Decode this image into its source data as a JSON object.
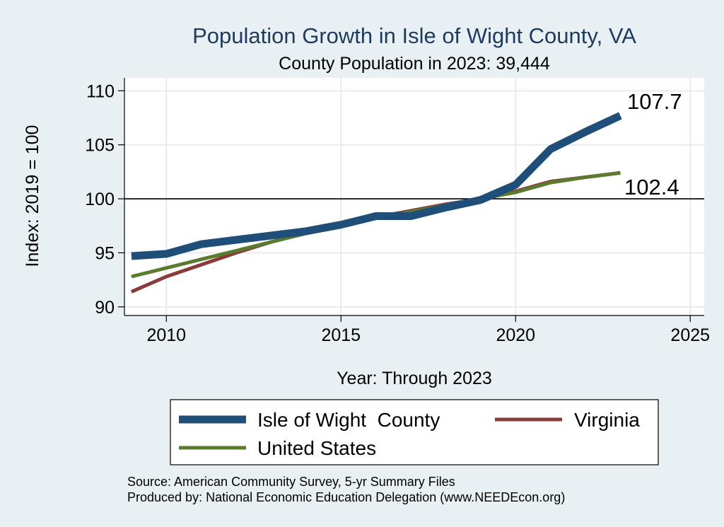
{
  "chart_data": {
    "type": "line",
    "title": "Population Growth in Isle of Wight County, VA",
    "subtitle": "County Population in 2023: 39,444",
    "xlabel": "Year: Through 2023",
    "ylabel": "Index: 2019 = 100",
    "xlim": [
      2008.8,
      2025.4
    ],
    "ylim": [
      89.2,
      111.2
    ],
    "xticks": [
      2010,
      2015,
      2020,
      2025
    ],
    "yticks": [
      90,
      95,
      100,
      105,
      110
    ],
    "reference_line": 100,
    "grid": true,
    "legend_position": "bottom",
    "x": [
      2009,
      2010,
      2011,
      2012,
      2013,
      2014,
      2015,
      2016,
      2017,
      2018,
      2019,
      2020,
      2021,
      2022,
      2023
    ],
    "series": [
      {
        "name": "Isle of Wight  County",
        "color": "#1f4e79",
        "values": [
          94.7,
          94.9,
          95.8,
          96.2,
          96.6,
          97.0,
          97.6,
          98.4,
          98.4,
          99.2,
          99.9,
          101.3,
          104.6,
          106.2,
          107.7
        ]
      },
      {
        "name": "Virginia",
        "color": "#8b3a3a",
        "values": [
          91.4,
          92.8,
          93.9,
          95.0,
          96.0,
          96.9,
          97.6,
          98.3,
          98.9,
          99.5,
          100.0,
          100.7,
          101.6,
          102.0,
          102.4
        ]
      },
      {
        "name": "United States",
        "color": "#5a7a2e",
        "values": [
          92.8,
          93.6,
          94.4,
          95.2,
          96.0,
          96.8,
          97.5,
          98.2,
          98.8,
          99.4,
          100.0,
          100.6,
          101.5,
          102.0,
          102.4
        ]
      }
    ],
    "end_labels": [
      "107.7",
      "102.4"
    ]
  },
  "notes": {
    "source": "Source: American Community Survey, 5-yr Summary Files",
    "produced": "Produced by: National Economic Education Delegation (www.NEEDEcon.org)"
  }
}
